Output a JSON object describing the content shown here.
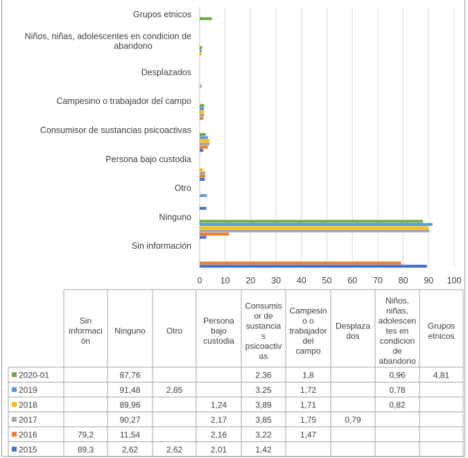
{
  "colors": {
    "2020-01": "#70AD47",
    "2019": "#5B9BD5",
    "2018": "#FFC000",
    "2017": "#A5A5A5",
    "2016": "#ED7D31",
    "2015": "#4472C4"
  },
  "chart_data": {
    "type": "bar",
    "orientation": "horizontal",
    "categories": [
      "Sin información",
      "Ninguno",
      "Otro",
      "Persona bajo custodia",
      "Consumisor de sustancias psicoactivas",
      "Campesino o trabajador del campo",
      "Desplazados",
      "Niños, niñas, adolescentes en condicion de abandono",
      "Grupos etnicos"
    ],
    "table_headers": [
      "Sin información",
      "Ninguno",
      "Otro",
      "Persona bajo custodia",
      "Consumisor de sustancias psicoactivas",
      "Campesino o trabajador del campo",
      "Desplazados",
      "Niños, niñas, adolescentes en condicion de abandono",
      "Grupos etnicos"
    ],
    "series": [
      {
        "name": "2020-01",
        "color": "#70AD47",
        "values": [
          null,
          87.76,
          null,
          null,
          2.36,
          1.8,
          null,
          0.96,
          4.81
        ],
        "labels": [
          "",
          "87,76",
          "",
          "",
          "2,36",
          "1,8",
          "",
          "0,96",
          "4,81"
        ]
      },
      {
        "name": "2019",
        "color": "#5B9BD5",
        "values": [
          null,
          91.48,
          2.85,
          null,
          3.25,
          1.72,
          null,
          0.78,
          null
        ],
        "labels": [
          "",
          "91,48",
          "2,85",
          "",
          "3,25",
          "1,72",
          "",
          "0,78",
          ""
        ]
      },
      {
        "name": "2018",
        "color": "#FFC000",
        "values": [
          null,
          89.96,
          null,
          1.24,
          3.89,
          1.71,
          null,
          0.82,
          null
        ],
        "labels": [
          "",
          "89,96",
          "",
          "1,24",
          "3,89",
          "1,71",
          "",
          "0,82",
          ""
        ]
      },
      {
        "name": "2017",
        "color": "#A5A5A5",
        "values": [
          null,
          90.27,
          null,
          2.17,
          3.85,
          1.75,
          0.79,
          null,
          null
        ],
        "labels": [
          "",
          "90,27",
          "",
          "2,17",
          "3,85",
          "1,75",
          "0,79",
          "",
          ""
        ]
      },
      {
        "name": "2016",
        "color": "#ED7D31",
        "values": [
          79.2,
          11.54,
          null,
          2.16,
          3.22,
          1.47,
          null,
          null,
          null
        ],
        "labels": [
          "79,2",
          "11,54",
          "",
          "2,16",
          "3,22",
          "1,47",
          "",
          "",
          ""
        ]
      },
      {
        "name": "2015",
        "color": "#4472C4",
        "values": [
          89.3,
          2.62,
          2.62,
          2.01,
          1.42,
          null,
          null,
          null,
          null
        ],
        "labels": [
          "89,3",
          "2,62",
          "2,62",
          "2,01",
          "1,42",
          "",
          "",
          "",
          ""
        ]
      }
    ],
    "xlim": [
      0,
      100
    ],
    "xticks": [
      0,
      10,
      20,
      30,
      40,
      50,
      60,
      70,
      80,
      90,
      100
    ],
    "grid": "vertical",
    "legend": "data-table"
  }
}
